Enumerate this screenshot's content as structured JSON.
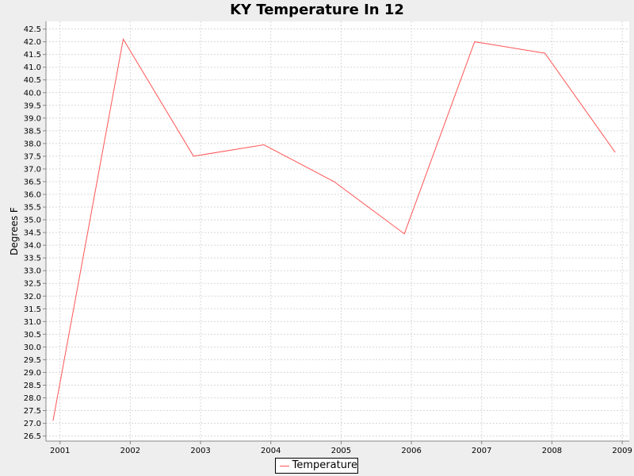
{
  "chart_data": {
    "type": "line",
    "title": "KY Temperature In 12",
    "xlabel": "",
    "ylabel": "Degrees F",
    "x": [
      2000.9,
      2001.9,
      2002.9,
      2003.9,
      2004.9,
      2005.9,
      2006.9,
      2007.9,
      2008.9
    ],
    "xticks": [
      2001,
      2002,
      2003,
      2004,
      2005,
      2006,
      2007,
      2008,
      2009
    ],
    "xlim": [
      2000.8,
      2009.1
    ],
    "ylim": [
      26.3,
      42.8
    ],
    "ytick_start": 26.5,
    "ytick_end": 42.5,
    "ytick_step": 0.5,
    "grid": true,
    "legend_position": "bottom-center",
    "series": [
      {
        "name": "Temperature",
        "color": "#ff5555",
        "values": [
          27.1,
          42.1,
          37.5,
          37.95,
          36.5,
          34.45,
          42.0,
          41.55,
          37.65
        ]
      }
    ]
  }
}
